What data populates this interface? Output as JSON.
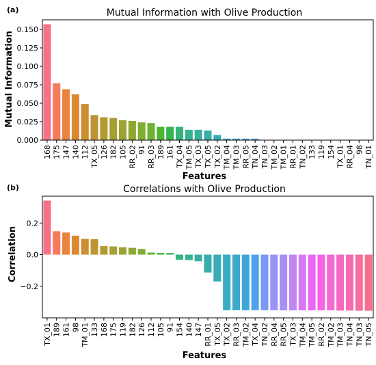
{
  "chart_data": [
    {
      "type": "bar",
      "panel_label": "(a)",
      "title": "Mutual Information with Olive Production",
      "xlabel": "Features",
      "ylabel": "Mutual Information",
      "ylim": [
        0,
        0.163
      ],
      "yticks": [
        0.0,
        0.025,
        0.05,
        0.075,
        0.1,
        0.125,
        0.15
      ],
      "ytick_labels": [
        "0.000",
        "0.025",
        "0.050",
        "0.075",
        "0.100",
        "0.125",
        "0.150"
      ],
      "grid": false,
      "categories": [
        "168",
        "175",
        "147",
        "140",
        "112",
        "TX_05",
        "126",
        "182",
        "105",
        "RR_02",
        "91",
        "RR_03",
        "189",
        "161",
        "TX_04",
        "TM_05",
        "TX_03",
        "TX_05",
        "TX_02",
        "TM_04",
        "TM_03",
        "RR_05",
        "TN_04",
        "TN_03",
        "TM_02",
        "TM_01",
        "RR_01",
        "TN_02",
        "133",
        "119",
        "154",
        "TX_01",
        "RR_04",
        "98",
        "TN_01"
      ],
      "values": [
        0.157,
        0.077,
        0.069,
        0.062,
        0.049,
        0.034,
        0.031,
        0.03,
        0.027,
        0.026,
        0.024,
        0.023,
        0.018,
        0.018,
        0.018,
        0.014,
        0.014,
        0.013,
        0.007,
        0.002,
        0.002,
        0.002,
        0.002,
        0,
        0,
        0,
        0,
        0,
        0,
        0,
        0,
        0,
        0,
        0,
        0
      ],
      "colors": [
        "#f77189",
        "#f67a5c",
        "#e9843f",
        "#dc8932",
        "#cc8f32",
        "#bf9432",
        "#b29a32",
        "#a69f32",
        "#9ba331",
        "#8ea731",
        "#7ead31",
        "#6eb231",
        "#4ab731",
        "#34b552",
        "#36b479",
        "#37b290",
        "#38b09e",
        "#39aeaa",
        "#3aacb6",
        "#3babc2",
        "#3ca9cd",
        "#3da6d9",
        "#50a1eb",
        "#7a99f4",
        "#9893f4",
        "#ab8ef4",
        "#bf87f4",
        "#d878f4",
        "#e769f4",
        "#f565e6",
        "#f567d2",
        "#f569c3",
        "#f66bb2",
        "#f66ea0",
        "#f6708e"
      ]
    },
    {
      "type": "bar",
      "panel_label": "(b)",
      "title": "Correlations with Olive Production",
      "xlabel": "Features",
      "ylabel": "Correlation",
      "ylim": [
        -0.4,
        0.37
      ],
      "yticks": [
        -0.2,
        0.0,
        0.2
      ],
      "ytick_labels": [
        "−0.2",
        "0.0",
        "0.2"
      ],
      "grid": false,
      "categories": [
        "TX_01",
        "189",
        "161",
        "98",
        "TM_01",
        "133",
        "168",
        "175",
        "119",
        "182",
        "126",
        "112",
        "105",
        "91",
        "154",
        "140",
        "147",
        "RR_01",
        "TX_05",
        "TX_02",
        "RR_03",
        "TM_02",
        "TX_04",
        "TN_02",
        "RR_04",
        "RR_05",
        "TX_03",
        "TM_04",
        "TM_05",
        "RR_02",
        "TM_02",
        "TM_03",
        "TN_04",
        "TN_03",
        "TN_05"
      ],
      "values": [
        0.342,
        0.148,
        0.14,
        0.12,
        0.1,
        0.098,
        0.054,
        0.052,
        0.047,
        0.043,
        0.036,
        0.013,
        0.011,
        0.01,
        -0.032,
        -0.035,
        -0.042,
        -0.113,
        -0.17,
        -0.352,
        -0.352,
        -0.352,
        -0.352,
        -0.352,
        -0.352,
        -0.353,
        -0.353,
        -0.353,
        -0.353,
        -0.353,
        -0.353,
        -0.354,
        -0.354,
        -0.355,
        -0.355
      ],
      "colors": [
        "#f77189",
        "#f67a5c",
        "#e9843f",
        "#dc8932",
        "#cc8f32",
        "#bf9432",
        "#b29a32",
        "#a69f32",
        "#9ba331",
        "#8ea731",
        "#7ead31",
        "#6eb231",
        "#4ab731",
        "#34b552",
        "#36b479",
        "#37b290",
        "#38b09e",
        "#39aeaa",
        "#3aacb6",
        "#3babc2",
        "#3ca9cd",
        "#3da6d9",
        "#50a1eb",
        "#7a99f4",
        "#9893f4",
        "#ab8ef4",
        "#bf87f4",
        "#d878f4",
        "#e769f4",
        "#f565e6",
        "#f567d2",
        "#f569c3",
        "#f66bb2",
        "#f66ea0",
        "#f6708e"
      ]
    }
  ]
}
